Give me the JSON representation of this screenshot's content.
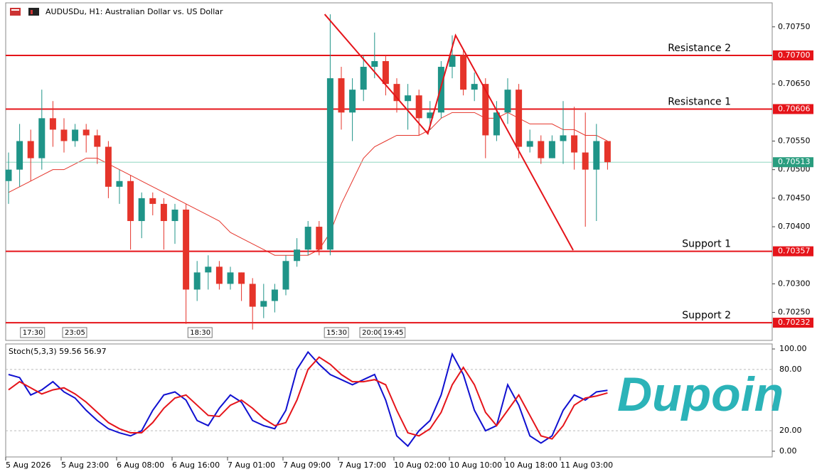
{
  "chart_data": [
    {
      "type": "candlestick",
      "title": "AUDUSDu, H1:  Australian Dollar vs. US Dollar",
      "open": [
        0.7048,
        0.705,
        0.7055,
        0.7052,
        0.7059,
        0.7057,
        0.7055,
        0.7057,
        0.7056,
        0.7054,
        0.7047,
        0.7048,
        0.7041,
        0.7045,
        0.7044,
        0.7041,
        0.7043,
        0.7029,
        0.7032,
        0.7033,
        0.703,
        0.7032,
        0.703,
        0.7026,
        0.7027,
        0.7029,
        0.7034,
        0.7036,
        0.704,
        0.7036,
        0.7066,
        0.706,
        0.7064,
        0.7068,
        0.7069,
        0.7065,
        0.7062,
        0.7063,
        0.7059,
        0.706,
        0.7068,
        0.707,
        0.7064,
        0.7065,
        0.7056,
        0.706,
        0.7064,
        0.7054,
        0.7055,
        0.7052,
        0.7055,
        0.7056,
        0.7053,
        0.705,
        0.7055
      ],
      "high": [
        0.7053,
        0.7058,
        0.7057,
        0.7064,
        0.7062,
        0.7059,
        0.7058,
        0.7058,
        0.7057,
        0.7055,
        0.705,
        0.7049,
        0.7046,
        0.7046,
        0.7045,
        0.7044,
        0.7044,
        0.7034,
        0.7035,
        0.7034,
        0.7033,
        0.7032,
        0.7031,
        0.703,
        0.703,
        0.7035,
        0.7038,
        0.7041,
        0.7041,
        0.70772,
        0.7068,
        0.7066,
        0.707,
        0.7074,
        0.707,
        0.7066,
        0.7065,
        0.7064,
        0.7062,
        0.7069,
        0.70735,
        0.7071,
        0.7067,
        0.7066,
        0.7062,
        0.7066,
        0.7065,
        0.7057,
        0.7056,
        0.7056,
        0.7062,
        0.7061,
        0.706,
        0.7058,
        0.7055
      ],
      "low": [
        0.7044,
        0.7047,
        0.7048,
        0.705,
        0.7054,
        0.7053,
        0.7054,
        0.7053,
        0.7051,
        0.7045,
        0.7044,
        0.7036,
        0.7038,
        0.7042,
        0.7036,
        0.7037,
        0.7023,
        0.7027,
        0.7029,
        0.7029,
        0.7029,
        0.7027,
        0.7022,
        0.7024,
        0.7025,
        0.7028,
        0.7033,
        0.7035,
        0.7035,
        0.7035,
        0.7057,
        0.7055,
        0.7062,
        0.7066,
        0.7063,
        0.706,
        0.7057,
        0.7056,
        0.7057,
        0.7059,
        0.7066,
        0.7063,
        0.7062,
        0.7052,
        0.7055,
        0.7058,
        0.7052,
        0.7053,
        0.7051,
        0.7052,
        0.7051,
        0.705,
        0.704,
        0.7041,
        0.705
      ],
      "close": [
        0.705,
        0.7055,
        0.7052,
        0.7059,
        0.7057,
        0.7055,
        0.7057,
        0.7056,
        0.7054,
        0.7047,
        0.7048,
        0.7041,
        0.7045,
        0.7044,
        0.7041,
        0.7043,
        0.7029,
        0.7032,
        0.7033,
        0.703,
        0.7032,
        0.703,
        0.7026,
        0.7027,
        0.7029,
        0.7034,
        0.7036,
        0.704,
        0.7036,
        0.7066,
        0.706,
        0.7064,
        0.7068,
        0.7069,
        0.7065,
        0.7062,
        0.7063,
        0.7059,
        0.706,
        0.7068,
        0.707,
        0.7064,
        0.7065,
        0.7056,
        0.706,
        0.7064,
        0.7054,
        0.7055,
        0.7052,
        0.7055,
        0.7056,
        0.7053,
        0.705,
        0.7055,
        0.70513
      ],
      "up_color": "#1f9488",
      "down_color": "#e5342a",
      "ma": [
        0.7046,
        0.7047,
        0.7048,
        0.7049,
        0.705,
        0.705,
        0.7051,
        0.7052,
        0.7052,
        0.7051,
        0.705,
        0.7049,
        0.7048,
        0.7047,
        0.7046,
        0.7045,
        0.7044,
        0.7043,
        0.7042,
        0.7041,
        0.7039,
        0.7038,
        0.7037,
        0.7036,
        0.7035,
        0.7035,
        0.7035,
        0.7035,
        0.7036,
        0.7039,
        0.7044,
        0.7048,
        0.7052,
        0.7054,
        0.7055,
        0.7056,
        0.7056,
        0.7056,
        0.7057,
        0.7059,
        0.706,
        0.706,
        0.706,
        0.7059,
        0.7059,
        0.706,
        0.7059,
        0.7058,
        0.7058,
        0.7058,
        0.7057,
        0.7057,
        0.7056,
        0.7056,
        0.7055
      ],
      "ma_color": "#e5342a",
      "trendline": [
        [
          28.5,
          0.70772
        ],
        [
          37.8,
          0.70563
        ],
        [
          40.3,
          0.70735
        ],
        [
          50.9,
          0.70359
        ]
      ],
      "trend_color": "#e5141a",
      "levels": [
        {
          "name": "Resistance 2",
          "value": 0.707,
          "label": "0.70700"
        },
        {
          "name": "Resistance 1",
          "value": 0.70606,
          "label": "0.70606"
        },
        {
          "name": "Support 1",
          "value": 0.70357,
          "label": "0.70357"
        },
        {
          "name": "Support 2",
          "value": 0.70232,
          "label": "0.70232"
        }
      ],
      "level_color": "#e5141a",
      "current_price": {
        "value": 0.70513,
        "label": "0.70513"
      },
      "current_color": "#2a9d7f",
      "time_markers": [
        {
          "index": 1.2,
          "label": "17:30"
        },
        {
          "index": 5,
          "label": "23:05"
        },
        {
          "index": 16.3,
          "label": "18:30"
        },
        {
          "index": 28.6,
          "label": "15:30"
        },
        {
          "index": 31.8,
          "label": "20:00"
        },
        {
          "index": 33.7,
          "label": "19:45"
        }
      ],
      "ylim": [
        0.70201,
        0.70792
      ],
      "yticks": [
        {
          "value": 0.7075,
          "label": "0.70750"
        },
        {
          "value": 0.7065,
          "label": "0.70650"
        },
        {
          "value": 0.7055,
          "label": "0.70550"
        },
        {
          "value": 0.705,
          "label": "0.70500"
        },
        {
          "value": 0.7045,
          "label": "0.70450"
        },
        {
          "value": 0.704,
          "label": "0.70400"
        },
        {
          "value": 0.703,
          "label": "0.70300"
        },
        {
          "value": 0.7025,
          "label": "0.70250"
        }
      ]
    },
    {
      "type": "line",
      "title": "Stoch(5,3,3) 59.56 56.97",
      "categories": [
        "5 Aug 2026",
        null,
        null,
        null,
        null,
        "5 Aug 23:00",
        null,
        null,
        null,
        null,
        "6 Aug 08:00",
        null,
        null,
        null,
        null,
        "6 Aug 16:00",
        null,
        null,
        null,
        null,
        "7 Aug 01:00",
        null,
        null,
        null,
        null,
        "7 Aug 09:00",
        null,
        null,
        null,
        null,
        "7 Aug 17:00",
        null,
        null,
        null,
        null,
        "10 Aug 02:00",
        null,
        null,
        null,
        null,
        "10 Aug 10:00",
        null,
        null,
        null,
        null,
        "10 Aug 18:00",
        null,
        null,
        null,
        null,
        "11 Aug 03:00",
        null,
        null,
        null,
        null
      ],
      "series": [
        {
          "color": "#1010d0",
          "values": [
            75,
            72,
            55,
            60,
            68,
            58,
            52,
            40,
            30,
            22,
            18,
            15,
            20,
            40,
            55,
            58,
            50,
            30,
            25,
            42,
            55,
            48,
            30,
            25,
            22,
            40,
            80,
            97,
            85,
            75,
            70,
            65,
            70,
            75,
            50,
            15,
            5,
            20,
            30,
            55,
            95,
            75,
            40,
            20,
            25,
            65,
            45,
            15,
            8,
            15,
            40,
            55,
            50,
            58,
            59.56
          ]
        },
        {
          "color": "#e5141a",
          "values": [
            60,
            68,
            62,
            56,
            60,
            62,
            56,
            48,
            38,
            28,
            22,
            18,
            18,
            28,
            42,
            52,
            55,
            45,
            35,
            34,
            45,
            50,
            42,
            32,
            25,
            28,
            50,
            80,
            92,
            85,
            75,
            68,
            68,
            70,
            65,
            40,
            18,
            15,
            22,
            38,
            65,
            82,
            65,
            38,
            25,
            40,
            55,
            35,
            15,
            12,
            25,
            45,
            52,
            54,
            56.97
          ]
        }
      ],
      "ylim": [
        -5.6,
        104.9
      ],
      "yticks": [
        {
          "value": 100,
          "label": "100.00"
        },
        {
          "value": 80,
          "label": "80.00"
        },
        {
          "value": 20,
          "label": "20.00"
        },
        {
          "value": 0,
          "label": "0.00"
        }
      ]
    }
  ],
  "logo": "Dupoin"
}
